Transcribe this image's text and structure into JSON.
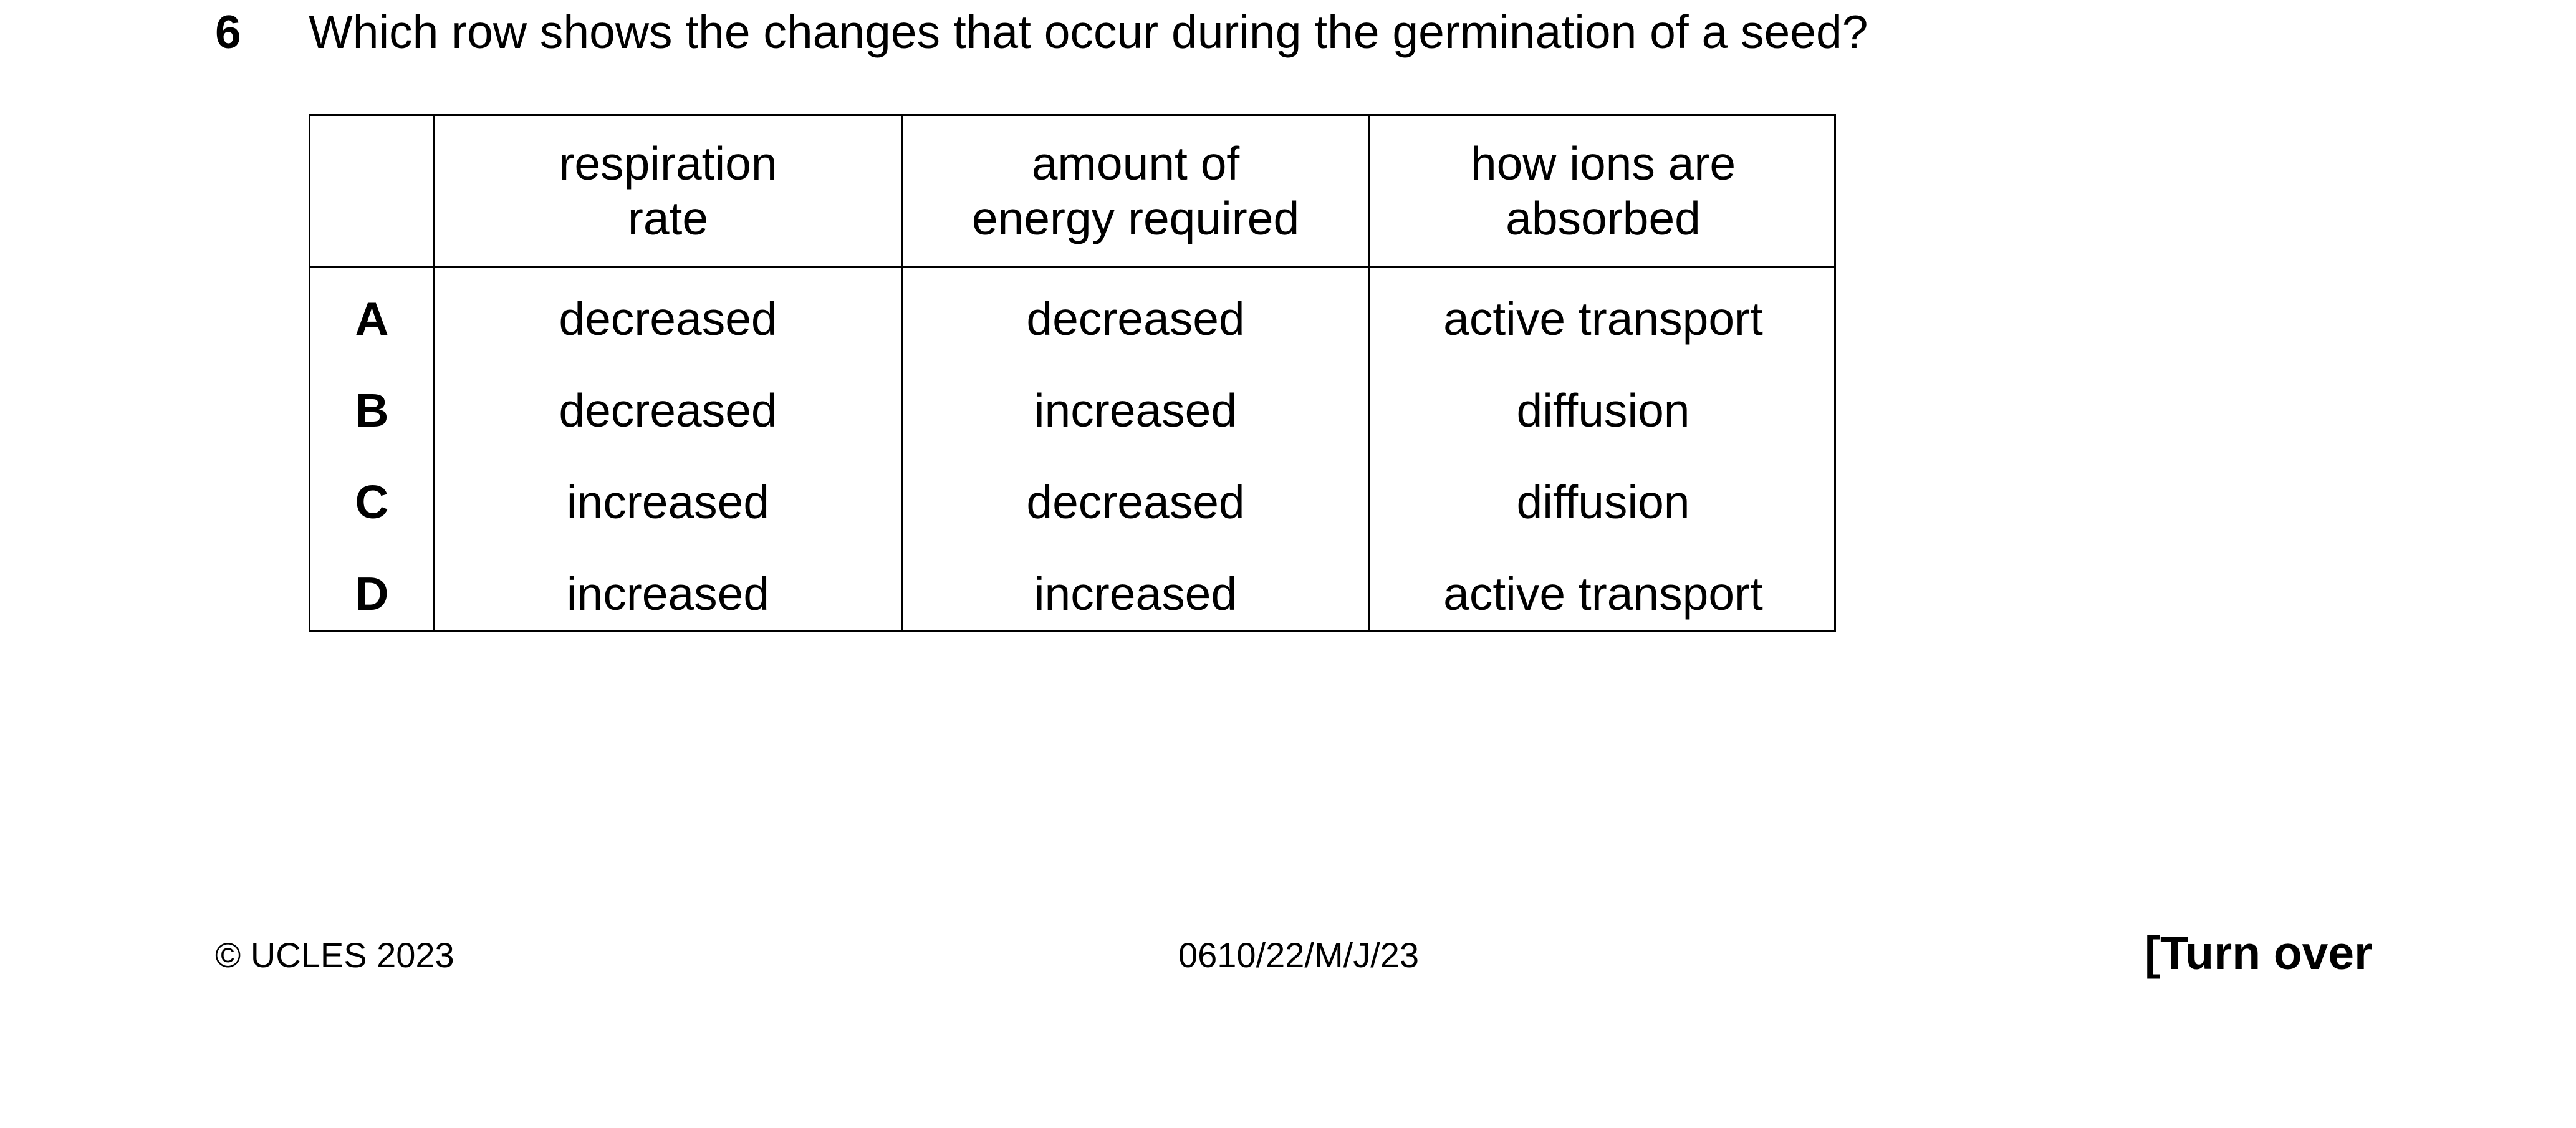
{
  "question": {
    "number": "6",
    "text": "Which row shows the changes that occur during the germination of a seed?"
  },
  "table": {
    "headers": [
      [
        "respiration",
        "rate"
      ],
      [
        "amount of",
        "energy required"
      ],
      [
        "how ions are",
        "absorbed"
      ]
    ],
    "rows": [
      {
        "label": "A",
        "cells": [
          "decreased",
          "decreased",
          "active transport"
        ]
      },
      {
        "label": "B",
        "cells": [
          "decreased",
          "increased",
          "diffusion"
        ]
      },
      {
        "label": "C",
        "cells": [
          "increased",
          "decreased",
          "diffusion"
        ]
      },
      {
        "label": "D",
        "cells": [
          "increased",
          "increased",
          "active transport"
        ]
      }
    ]
  },
  "footer": {
    "copyright": "© UCLES 2023",
    "code": "0610/22/M/J/23",
    "turn_over": "[Turn over"
  }
}
